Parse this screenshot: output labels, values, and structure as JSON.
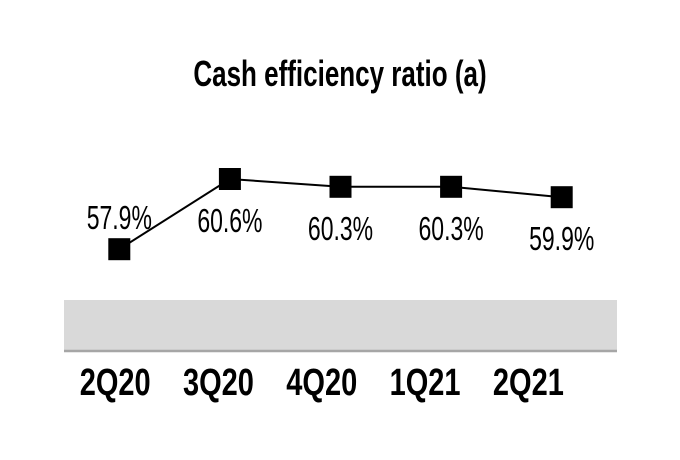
{
  "title": "Cash efficiency ratio (a)",
  "chart_data": {
    "type": "line",
    "title": "Cash efficiency ratio (a)",
    "categories": [
      "2Q20",
      "3Q20",
      "4Q20",
      "1Q21",
      "2Q21"
    ],
    "values": [
      57.9,
      60.6,
      60.3,
      60.3,
      59.9
    ],
    "data_labels": [
      "57.9%",
      "60.6%",
      "60.3%",
      "60.3%",
      "59.9%"
    ],
    "unit": "%",
    "marker_shape": "filled-square",
    "legend": "none",
    "gridlines": "off",
    "y_axis": "hidden",
    "first_label_position": "above-point",
    "other_labels_position": "below-point",
    "colors": {
      "line": "#000000",
      "marker": "#000000",
      "label_text": "#000000",
      "title_text": "#000000",
      "category_band": "#d9d9d9",
      "category_band_border": "#a6a6a6",
      "background": "#ffffff"
    }
  }
}
